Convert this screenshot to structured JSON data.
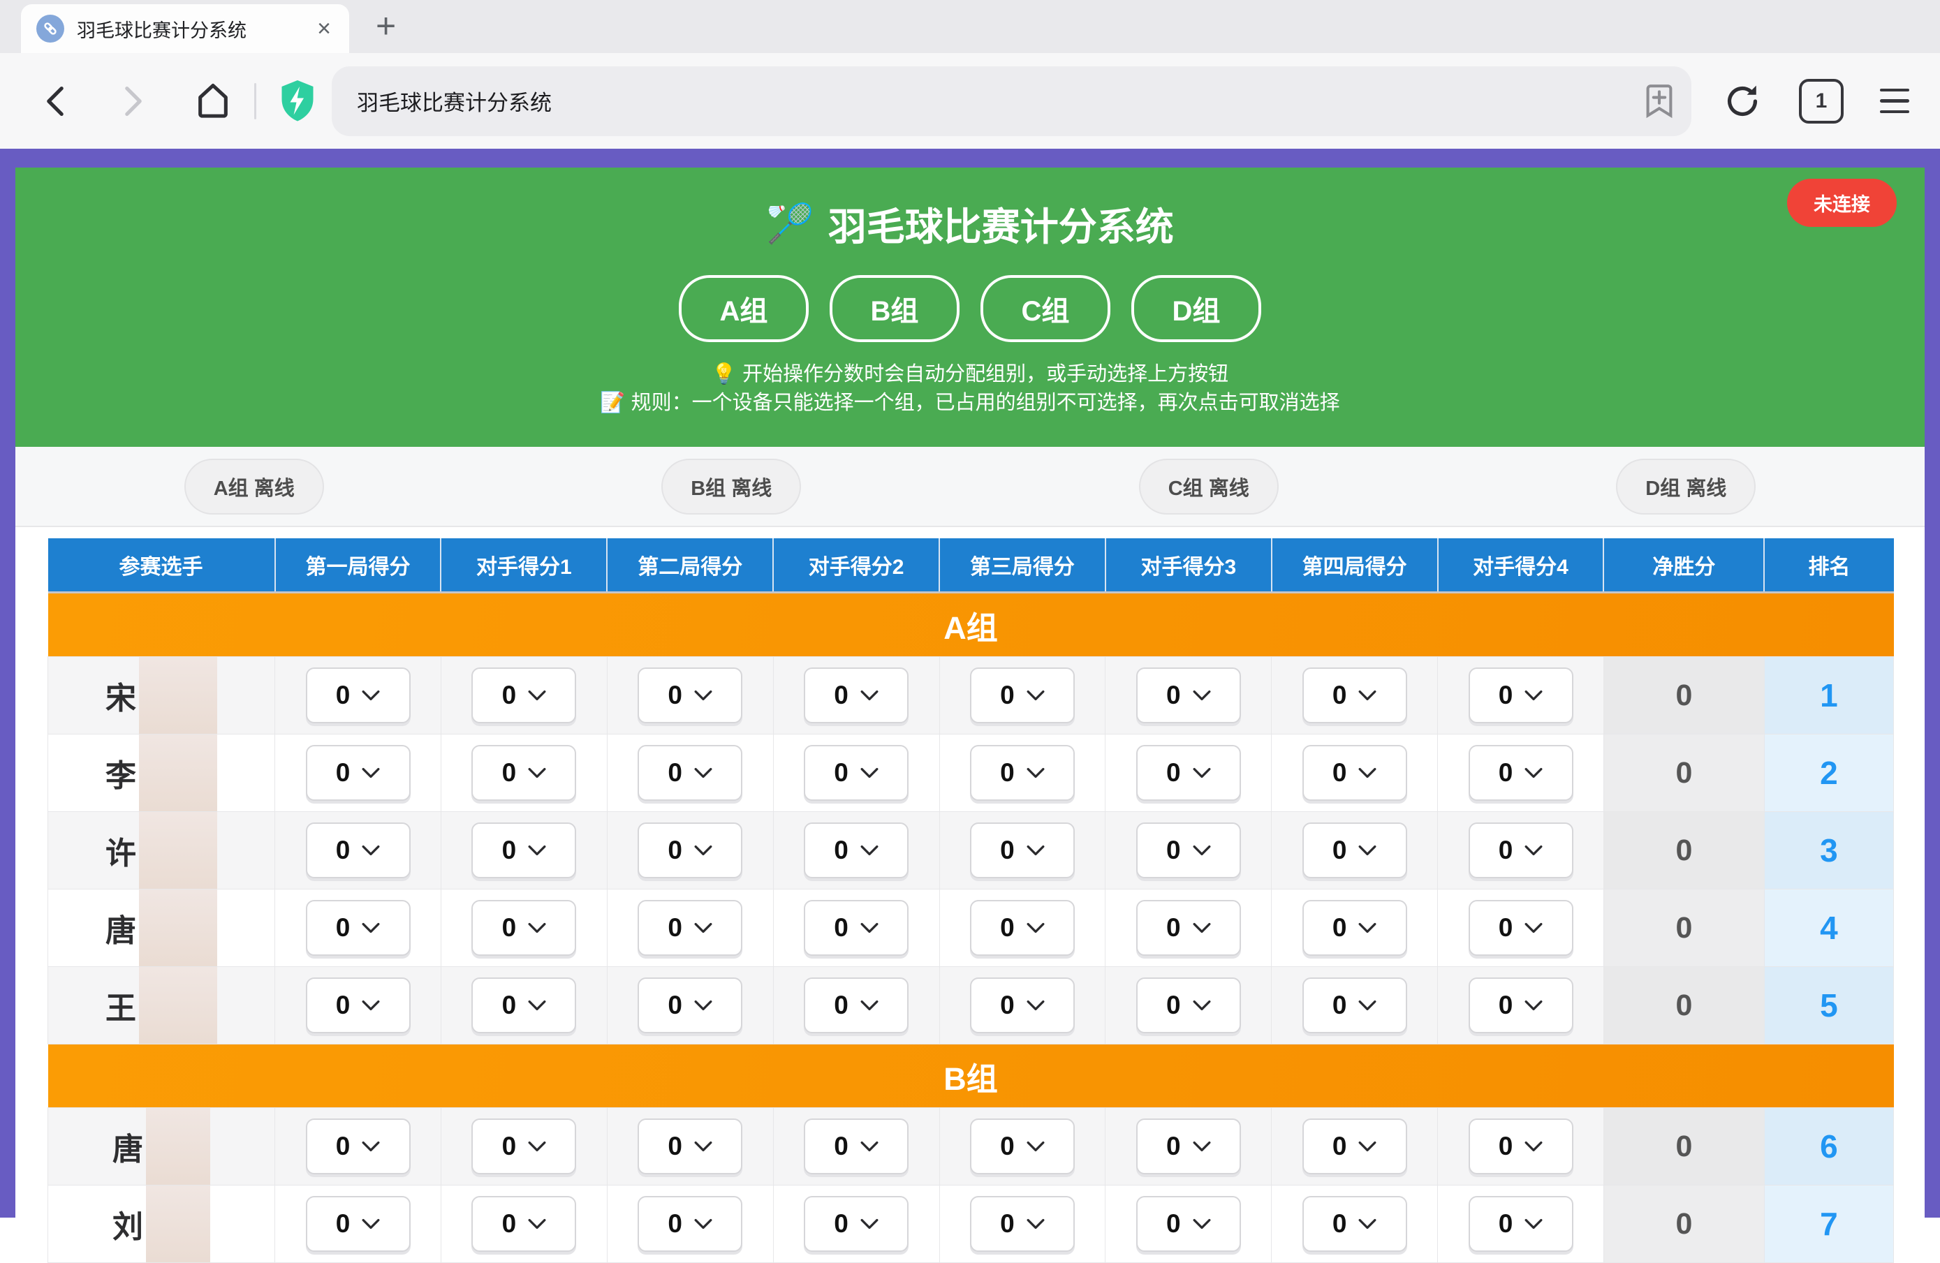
{
  "browser": {
    "tab": {
      "title": "羽毛球比赛计分系统",
      "close": "×"
    },
    "new_tab": "+",
    "url": "羽毛球比赛计分系统",
    "tab_count": "1"
  },
  "page": {
    "connection_badge": "未连接",
    "title_emoji": "🏸",
    "title": "羽毛球比赛计分系统",
    "group_buttons": [
      {
        "label": "A组"
      },
      {
        "label": "B组"
      },
      {
        "label": "C组"
      },
      {
        "label": "D组"
      }
    ],
    "hint_auto": "💡 开始操作分数时会自动分配组别，或手动选择上方按钮",
    "hint_rule": "📝 规则：一个设备只能选择一个组，已占用的组别不可选择，再次点击可取消选择",
    "status_items": [
      {
        "label": "A组 离线"
      },
      {
        "label": "B组 离线"
      },
      {
        "label": "C组 离线"
      },
      {
        "label": "D组 离线"
      }
    ]
  },
  "table": {
    "headers": [
      "参赛选手",
      "第一局得分",
      "对手得分1",
      "第二局得分",
      "对手得分2",
      "第三局得分",
      "对手得分3",
      "第四局得分",
      "对手得分4",
      "净胜分",
      "排名"
    ],
    "groups": [
      {
        "label": "A组",
        "rows": [
          {
            "name": "宋",
            "scores": [
              "0",
              "0",
              "0",
              "0",
              "0",
              "0",
              "0",
              "0"
            ],
            "net": "0",
            "rank": "1"
          },
          {
            "name": "李",
            "scores": [
              "0",
              "0",
              "0",
              "0",
              "0",
              "0",
              "0",
              "0"
            ],
            "net": "0",
            "rank": "2"
          },
          {
            "name": "许",
            "scores": [
              "0",
              "0",
              "0",
              "0",
              "0",
              "0",
              "0",
              "0"
            ],
            "net": "0",
            "rank": "3"
          },
          {
            "name": "唐",
            "scores": [
              "0",
              "0",
              "0",
              "0",
              "0",
              "0",
              "0",
              "0"
            ],
            "net": "0",
            "rank": "4"
          },
          {
            "name": "王",
            "scores": [
              "0",
              "0",
              "0",
              "0",
              "0",
              "0",
              "0",
              "0"
            ],
            "net": "0",
            "rank": "5"
          }
        ]
      },
      {
        "label": "B组",
        "rows": [
          {
            "name": "唐",
            "scores": [
              "0",
              "0",
              "0",
              "0",
              "0",
              "0",
              "0",
              "0"
            ],
            "net": "0",
            "rank": "6"
          },
          {
            "name": "刘",
            "scores": [
              "0",
              "0",
              "0",
              "0",
              "0",
              "0",
              "0",
              "0"
            ],
            "net": "0",
            "rank": "7"
          }
        ]
      }
    ]
  },
  "icons": {
    "favicon": "link-icon",
    "back": "chevron-left",
    "forward": "chevron-right",
    "home": "house-outline",
    "shield": "shield-lightning",
    "bookmark_add": "bookmark-plus",
    "reload": "circular-arrow",
    "menu": "hamburger",
    "select_chevron": "chevron-down"
  },
  "colors": {
    "hero_green": "#4aab52",
    "table_header_blue": "#1e80d0",
    "group_band_orange": "#f89406",
    "frame_purple": "#685cc2",
    "badge_red": "#f04337",
    "rank_blue": "#2196f3"
  }
}
